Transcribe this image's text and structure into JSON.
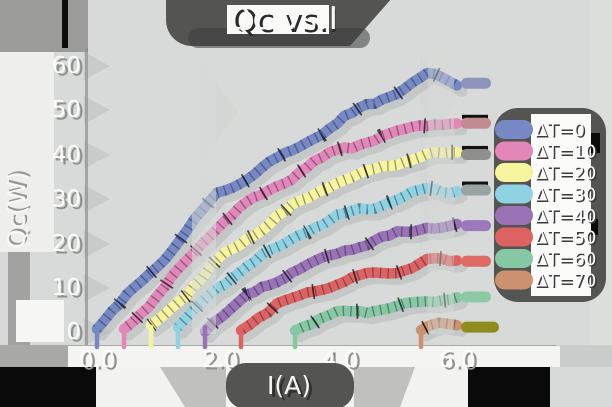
{
  "title": "Qc vs.I",
  "axes": {
    "x_label": "I(A)",
    "y_label": "Qc(W)",
    "x_tick_labels": [
      "0.0",
      "2.0",
      "4.0",
      "6.0"
    ],
    "y_tick_labels": [
      "60",
      "50",
      "40",
      "30",
      "20",
      "10",
      "0"
    ]
  },
  "legend": {
    "items": [
      {
        "label": "ΔT=0",
        "color": "#7689c5"
      },
      {
        "label": "ΔT=10",
        "color": "#e287b7"
      },
      {
        "label": "ΔT=20",
        "color": "#f7f49e"
      },
      {
        "label": "ΔT=30",
        "color": "#8fd2e2"
      },
      {
        "label": "ΔT=40",
        "color": "#9a73b7"
      },
      {
        "label": "ΔT=50",
        "color": "#df6262"
      },
      {
        "label": "ΔT=60",
        "color": "#85c8a3"
      },
      {
        "label": "ΔT=70",
        "color": "#cc9270"
      }
    ]
  },
  "chart_data": {
    "type": "line",
    "title": "Qc vs.I",
    "xlabel": "I(A)",
    "ylabel": "Qc(W)",
    "xlim": [
      0,
      6.3
    ],
    "ylim": [
      0,
      63
    ],
    "x_ticks": [
      0,
      2,
      4,
      6
    ],
    "y_ticks": [
      0,
      10,
      20,
      30,
      40,
      50,
      60
    ],
    "grid": false,
    "legend_position": "right",
    "style": "hand-drawn thick pastel bands with error-bar ticks",
    "series": [
      {
        "name": "ΔT=0",
        "color": "#7689c5",
        "cap_color": "#8e94b9",
        "cap_black": false,
        "cap_width": 30,
        "x": [
          0,
          0.5,
          1,
          1.5,
          2,
          2.5,
          3,
          3.5,
          4,
          4.5,
          5,
          5.5,
          6
        ],
        "y": [
          0,
          7,
          14,
          22,
          30,
          34,
          38,
          42,
          46,
          50,
          53,
          57,
          55
        ]
      },
      {
        "name": "ΔT=10",
        "color": "#e287b7",
        "cap_color": "#c08c92",
        "cap_black": true,
        "cap_width": 30,
        "x": [
          0.45,
          1,
          1.5,
          2,
          2.5,
          3,
          3.5,
          4,
          4.5,
          5,
          5.5,
          6
        ],
        "y": [
          0,
          7,
          15,
          23,
          28,
          32,
          36,
          40,
          42,
          44,
          46,
          46
        ]
      },
      {
        "name": "ΔT=20",
        "color": "#f7f49e",
        "cap_color": "#8f8f8d",
        "cap_black": true,
        "cap_width": 30,
        "x": [
          0.9,
          1.5,
          2,
          2.5,
          3,
          3.5,
          4,
          4.5,
          5,
          5.5,
          6
        ],
        "y": [
          0,
          8,
          15,
          20,
          25,
          29,
          33,
          35,
          37,
          39,
          39
        ]
      },
      {
        "name": "ΔT=30",
        "color": "#8fd2e2",
        "cap_color": "#9aa3a3",
        "cap_black": true,
        "cap_width": 30,
        "x": [
          1.35,
          2,
          2.5,
          3,
          3.5,
          4,
          4.5,
          5,
          5.5,
          6
        ],
        "y": [
          0,
          9,
          14,
          18,
          22,
          25,
          27,
          29,
          31,
          31
        ]
      },
      {
        "name": "ΔT=40",
        "color": "#9a73b7",
        "cap_color": "#9d78ba",
        "cap_black": false,
        "cap_width": 30,
        "x": [
          1.8,
          2.5,
          3,
          3.5,
          4,
          4.5,
          5,
          5.5,
          6
        ],
        "y": [
          0,
          7,
          11,
          14,
          17,
          19,
          21,
          23,
          23
        ]
      },
      {
        "name": "ΔT=50",
        "color": "#df6262",
        "cap_color": "#de6a64",
        "cap_black": false,
        "cap_width": 30,
        "x": [
          2.4,
          3,
          3.5,
          4,
          4.5,
          5,
          5.5,
          6
        ],
        "y": [
          0,
          5,
          8,
          10,
          12,
          13,
          15,
          15
        ]
      },
      {
        "name": "ΔT=60",
        "color": "#85c8a3",
        "cap_color": "#8ccaa6",
        "cap_black": false,
        "cap_width": 30,
        "x": [
          3.3,
          4,
          4.5,
          5,
          5.5,
          6
        ],
        "y": [
          0,
          3,
          4,
          5,
          6,
          7
        ]
      },
      {
        "name": "ΔT=70",
        "color": "#cc9270",
        "cap_color": "#8f8c1f",
        "cap_black": false,
        "cap_width": 38,
        "x": [
          5.4,
          5.7,
          6
        ],
        "y": [
          0.2,
          1.2,
          0.2
        ]
      }
    ]
  }
}
